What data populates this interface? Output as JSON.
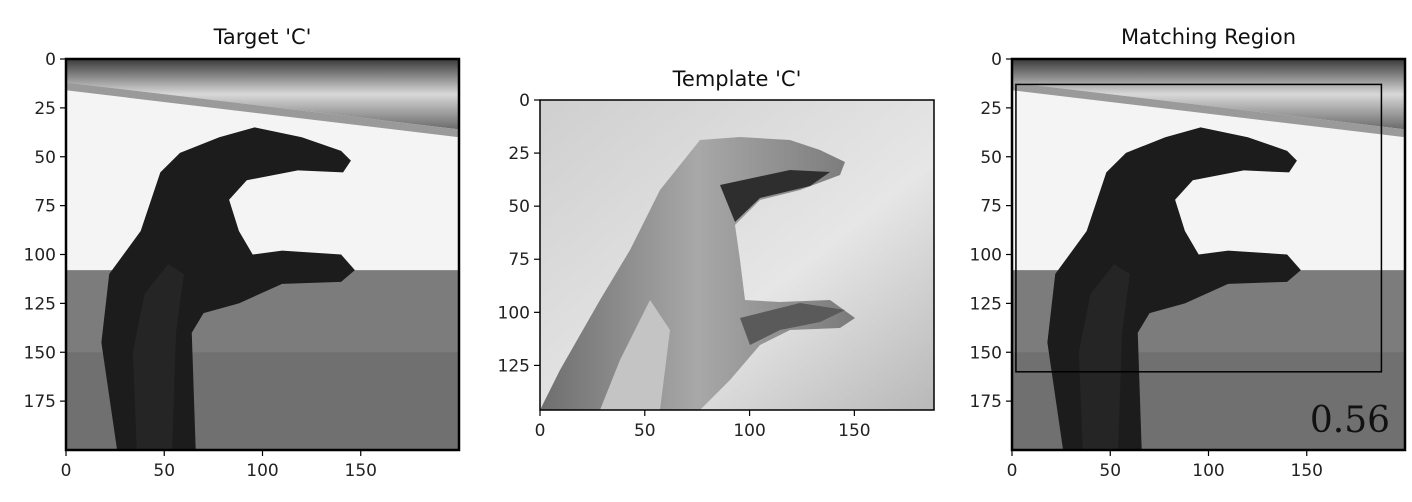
{
  "chart_data": [
    {
      "type": "image",
      "title": "Target 'C'",
      "xlim": [
        0,
        200
      ],
      "ylim": [
        200,
        0
      ],
      "xticks": [
        0,
        50,
        100,
        150
      ],
      "yticks": [
        0,
        25,
        50,
        75,
        100,
        125,
        150,
        175
      ],
      "image_description": "grayscale photo of a hand forming the letter C"
    },
    {
      "type": "image",
      "title": "Template 'C'",
      "xlim": [
        0,
        188
      ],
      "ylim": [
        146,
        0
      ],
      "xticks": [
        0,
        50,
        100,
        150
      ],
      "yticks": [
        0,
        25,
        50,
        75,
        100,
        125
      ],
      "image_description": "grayscale photo of a hand forming the letter C on a light background"
    },
    {
      "type": "image",
      "title": "Matching Region",
      "xlim": [
        0,
        200
      ],
      "ylim": [
        200,
        0
      ],
      "xticks": [
        0,
        50,
        100,
        150
      ],
      "yticks": [
        0,
        25,
        50,
        75,
        100,
        125,
        150,
        175
      ],
      "match_box": {
        "x0": 2,
        "y0": 13,
        "x1": 188,
        "y1": 160
      },
      "score_label": "0.56",
      "image_description": "target image with a rectangle marking the matched region"
    }
  ]
}
